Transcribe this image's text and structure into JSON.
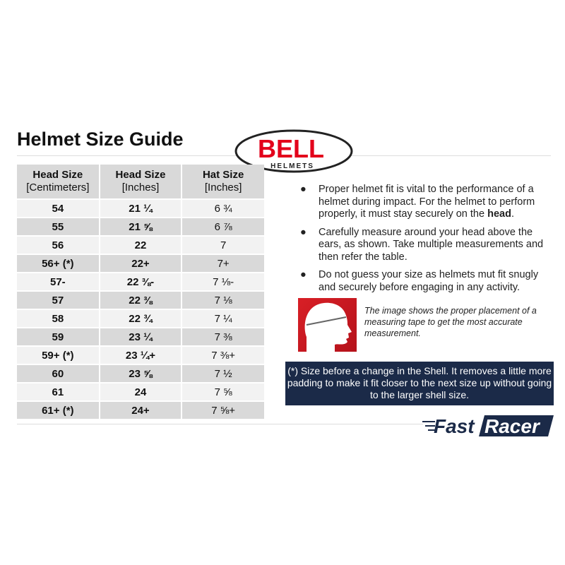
{
  "title": "Helmet Size Guide",
  "logo": {
    "brand": "BELL",
    "sub": "HELMETS",
    "brand_color": "#e3001b"
  },
  "table": {
    "headers": [
      {
        "main": "Head Size",
        "sub": "[Centimeters]"
      },
      {
        "main": "Head Size",
        "sub": "[Inches]"
      },
      {
        "main": "Hat Size",
        "sub": "[Inches]"
      }
    ],
    "rows": [
      [
        "54",
        "21 ¼",
        "6 ¾"
      ],
      [
        "55",
        "21 ⅝",
        "6 ⅞"
      ],
      [
        "56",
        "22",
        "7"
      ],
      [
        "56+ (*)",
        "22+",
        "7+"
      ],
      [
        "57-",
        "22 ⅜-",
        "7 ⅛-"
      ],
      [
        "57",
        "22 ⅜",
        "7 ⅛"
      ],
      [
        "58",
        "22 ¾",
        "7 ¼"
      ],
      [
        "59",
        "23 ¼",
        "7 ⅜"
      ],
      [
        "59+ (*)",
        "23 ¼+",
        "7 ⅜+"
      ],
      [
        "60",
        "23 ⅝",
        "7 ½"
      ],
      [
        "61",
        "24",
        "7 ⅝"
      ],
      [
        "61+ (*)",
        "24+",
        "7 ⅝+"
      ]
    ]
  },
  "bullets": [
    {
      "text": "Proper helmet fit is vital to the performance of a helmet during impact. For the helmet to perform properly, it must stay securely on the ",
      "bold": "head",
      "end": "."
    },
    {
      "text": "Carefully measure around your head above the ears, as shown. Take multiple measurements and then refer the table.",
      "bold": "",
      "end": ""
    },
    {
      "text": "Do not guess your size as helmets mut fit snugly and securely before engaging in any activity.",
      "bold": "",
      "end": ""
    }
  ],
  "caption": "The image shows the proper placement of a measuring tape to get the most accurate measurement.",
  "note": "(*) Size before a change in the Shell. It removes a little more padding to make it fit closer to the next size up without going to the larger shell size.",
  "footer_brand": {
    "part1": "Fast",
    "part2": "Racer",
    "color": "#1b2a48"
  }
}
